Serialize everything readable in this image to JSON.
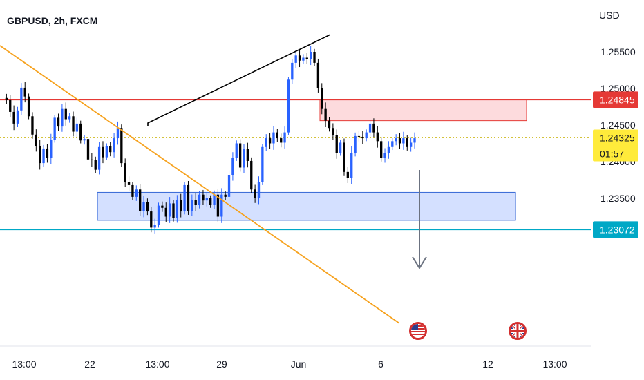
{
  "header": {
    "symbol": "GBPUSD, 2h, FXCM",
    "currency": "USD"
  },
  "colors": {
    "up_candle": "#2962ff",
    "down_candle": "#000000",
    "resistance": "#e53935",
    "support_box": "#3f6fd8",
    "trendline": "#f6a21e",
    "cyan_line": "#00a8c6",
    "price_tag": "#ffeb3b"
  },
  "chart_data": {
    "type": "candlestick",
    "y_axis": {
      "ylim": [
        1.2295,
        1.2595
      ],
      "ticks": [
        "1.25500",
        "1.25000",
        "1.24500",
        "1.24000",
        "1.23500",
        "1.23000"
      ]
    },
    "x_axis": {
      "ticks": [
        "13:00",
        "22",
        "13:00",
        "29",
        "Jun",
        "6",
        "12",
        "13:00"
      ]
    },
    "price_labels": {
      "resistance": "1.24845",
      "current": "1.24325",
      "countdown": "01:57",
      "support_line": "1.23072"
    },
    "levels": {
      "resistance": 1.24845,
      "current": 1.24325,
      "support_line": 1.23072
    },
    "zones": [
      {
        "name": "supply",
        "top": 1.24845,
        "bottom": 1.2456
      },
      {
        "name": "demand",
        "top": 1.2358,
        "bottom": 1.232
      }
    ],
    "close_path": [
      1.2487,
      1.2484,
      1.2468,
      1.2452,
      1.247,
      1.2501,
      1.2489,
      1.2462,
      1.2437,
      1.2421,
      1.2398,
      1.2418,
      1.2405,
      1.243,
      1.246,
      1.2448,
      1.2472,
      1.2458,
      1.2462,
      1.2441,
      1.2452,
      1.2429,
      1.2431,
      1.2403,
      1.2402,
      1.2389,
      1.242,
      1.2406,
      1.2421,
      1.2413,
      1.2432,
      1.2446,
      1.2398,
      1.2372,
      1.2368,
      1.2352,
      1.2362,
      1.2333,
      1.2345,
      1.2332,
      1.231,
      1.2314,
      1.234,
      1.2337,
      1.2325,
      1.2343,
      1.2323,
      1.2348,
      1.2332,
      1.2368,
      1.2333,
      1.2348,
      1.2341,
      1.2355,
      1.2347,
      1.235,
      1.2341,
      1.2355,
      1.2325,
      1.2355,
      1.2352,
      1.2382,
      1.2405,
      1.2425,
      1.2392,
      1.2417,
      1.2401,
      1.2362,
      1.235,
      1.2372,
      1.242,
      1.2432,
      1.2425,
      1.244,
      1.2432,
      1.2426,
      1.244,
      1.2512,
      1.2535,
      1.2545,
      1.2538,
      1.2542,
      1.254,
      1.255,
      1.2535,
      1.25,
      1.2472,
      1.2456,
      1.2446,
      1.2436,
      1.2412,
      1.2426,
      1.2386,
      1.2378,
      1.2412,
      1.2435,
      1.2434,
      1.2432,
      1.244,
      1.2452,
      1.244,
      1.2428,
      1.2405,
      1.2412,
      1.242,
      1.2428,
      1.2432,
      1.2425,
      1.2432,
      1.242,
      1.2426,
      1.2432
    ],
    "annotations": [
      "descending orange trendline",
      "black rising wedge line to swing high",
      "grey down arrow toward demand zone",
      "event flag icons: US and UK"
    ]
  }
}
